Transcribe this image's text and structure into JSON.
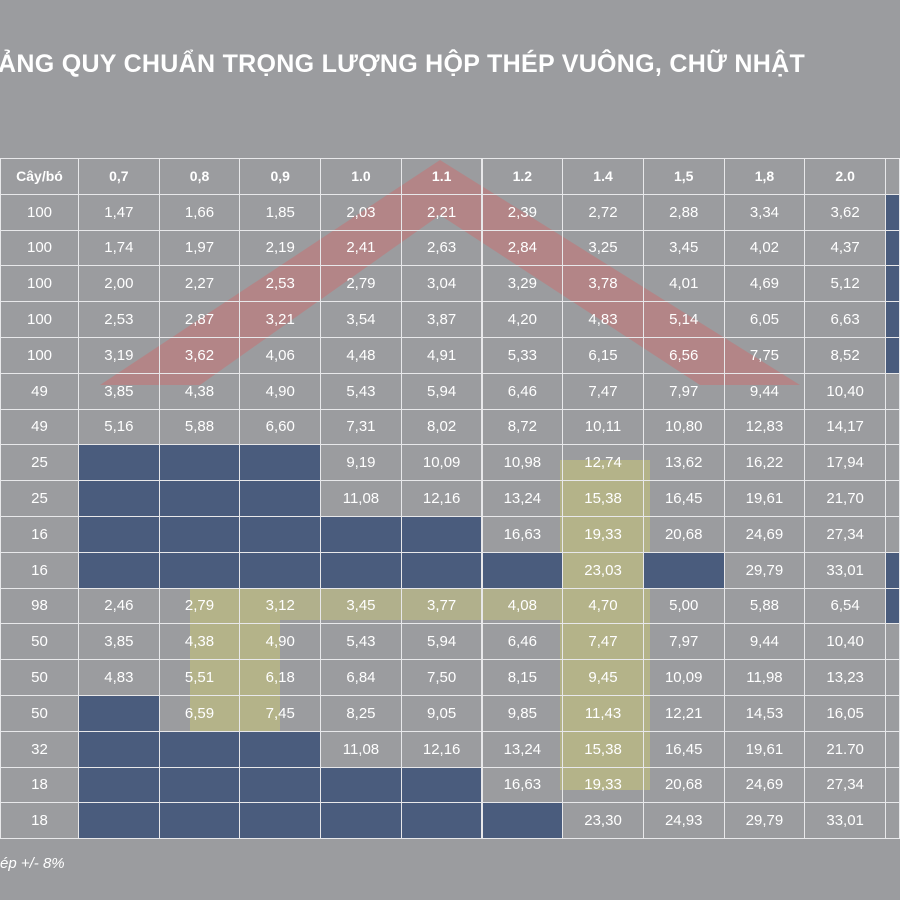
{
  "header": {
    "title": "ẢNG QUY CHUẨN TRỌNG LƯỢNG HỘP THÉP VUÔNG, CHỮ NHẬT"
  },
  "table": {
    "header": [
      "Cây/bó",
      "0,7",
      "0,8",
      "0,9",
      "1.0",
      "1.1",
      "1.2",
      "1.4",
      "1,5",
      "1,8",
      "2.0"
    ],
    "rows": [
      [
        "100",
        "1,47",
        "1,66",
        "1,85",
        "2,03",
        "2,21",
        "2,39",
        "2,72",
        "2,88",
        "3,34",
        "3,62"
      ],
      [
        "100",
        "1,74",
        "1,97",
        "2,19",
        "2,41",
        "2,63",
        "2,84",
        "3,25",
        "3,45",
        "4,02",
        "4,37"
      ],
      [
        "100",
        "2,00",
        "2,27",
        "2,53",
        "2,79",
        "3,04",
        "3,29",
        "3,78",
        "4,01",
        "4,69",
        "5,12"
      ],
      [
        "100",
        "2,53",
        "2,87",
        "3,21",
        "3,54",
        "3,87",
        "4,20",
        "4,83",
        "5,14",
        "6,05",
        "6,63"
      ],
      [
        "100",
        "3,19",
        "3,62",
        "4,06",
        "4,48",
        "4,91",
        "5,33",
        "6,15",
        "6,56",
        "7,75",
        "8,52"
      ],
      [
        "49",
        "3,85",
        "4,38",
        "4,90",
        "5,43",
        "5,94",
        "6,46",
        "7,47",
        "7,97",
        "9,44",
        "10,40"
      ],
      [
        "49",
        "5,16",
        "5,88",
        "6,60",
        "7,31",
        "8,02",
        "8,72",
        "10,11",
        "10,80",
        "12,83",
        "14,17"
      ],
      [
        "25",
        null,
        null,
        null,
        "9,19",
        "10,09",
        "10,98",
        "12,74",
        "13,62",
        "16,22",
        "17,94"
      ],
      [
        "25",
        null,
        null,
        null,
        "11,08",
        "12,16",
        "13,24",
        "15,38",
        "16,45",
        "19,61",
        "21,70"
      ],
      [
        "16",
        null,
        null,
        null,
        null,
        null,
        "16,63",
        "19,33",
        "20,68",
        "24,69",
        "27,34"
      ],
      [
        "16",
        null,
        null,
        null,
        null,
        null,
        null,
        "23,03",
        null,
        "29,79",
        "33,01"
      ],
      [
        "98",
        "2,46",
        "2,79",
        "3,12",
        "3,45",
        "3,77",
        "4,08",
        "4,70",
        "5,00",
        "5,88",
        "6,54"
      ],
      [
        "50",
        "3,85",
        "4,38",
        "4,90",
        "5,43",
        "5,94",
        "6,46",
        "7,47",
        "7,97",
        "9,44",
        "10,40"
      ],
      [
        "50",
        "4,83",
        "5,51",
        "6,18",
        "6,84",
        "7,50",
        "8,15",
        "9,45",
        "10,09",
        "11,98",
        "13,23"
      ],
      [
        "50",
        null,
        "6,59",
        "7,45",
        "8,25",
        "9,05",
        "9,85",
        "11,43",
        "12,21",
        "14,53",
        "16,05"
      ],
      [
        "32",
        null,
        null,
        null,
        "11,08",
        "12,16",
        "13,24",
        "15,38",
        "16,45",
        "19,61",
        "21.70"
      ],
      [
        "18",
        null,
        null,
        null,
        null,
        null,
        "16,63",
        "19,33",
        "20,68",
        "24,69",
        "27,34"
      ],
      [
        "18",
        null,
        null,
        null,
        null,
        null,
        null,
        "23,30",
        "24,93",
        "29,79",
        "33,01"
      ]
    ]
  },
  "footer": {
    "note": "ép +/- 8%"
  }
}
